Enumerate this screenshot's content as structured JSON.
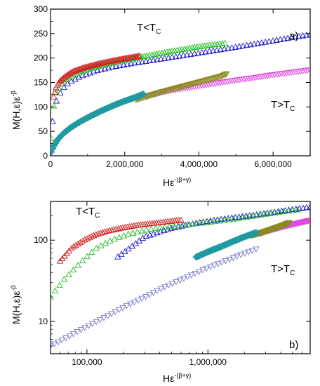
{
  "chart_data": [
    {
      "type": "scatter",
      "panel_label": "a)",
      "xlabel_main": "Hε",
      "xlabel_sup": "-(β+γ)",
      "ylabel_main": "M(H,ε)ε",
      "ylabel_sup": "-β",
      "xlim": [
        0,
        7000000
      ],
      "ylim": [
        0,
        300
      ],
      "xticks": [
        0,
        2000000,
        4000000,
        6000000
      ],
      "xtick_labels": [
        "0",
        "2,000,000",
        "4,000,000",
        "6,000,000"
      ],
      "yticks": [
        0,
        50,
        100,
        150,
        200,
        250,
        300
      ],
      "ytick_labels": [
        "0",
        "50",
        "100",
        "150",
        "200",
        "250",
        "300"
      ],
      "annotations": [
        {
          "main": "T<T",
          "sub": "C",
          "x": 2200000,
          "y": 268
        },
        {
          "main": "T>T",
          "sub": "C",
          "x": 5950000,
          "y": 130
        }
      ],
      "series": [
        {
          "group": "below",
          "color": "#1a1acc",
          "marker": "triangle-up",
          "x": [
            60000,
            150000,
            300000,
            500000,
            800000,
            1200000,
            1700000,
            2300000,
            3000000,
            4000000,
            5000000,
            6000000,
            7000000
          ],
          "y": [
            70,
            110,
            135,
            150,
            162,
            173,
            182,
            190,
            198,
            210,
            222,
            235,
            248
          ]
        },
        {
          "group": "below",
          "color": "#20c020",
          "marker": "triangle-up",
          "x": [
            20000,
            60000,
            150000,
            300000,
            500000,
            800000,
            1200000,
            1800000,
            2500000,
            3300000,
            4000000,
            4700000
          ],
          "y": [
            35,
            90,
            128,
            148,
            160,
            172,
            182,
            193,
            203,
            214,
            223,
            230
          ]
        },
        {
          "group": "below",
          "color": "#d02020",
          "marker": "triangle-up",
          "x": [
            80000,
            150000,
            250000,
            400000,
            600000,
            900000,
            1300000,
            1800000,
            2400000
          ],
          "y": [
            120,
            140,
            152,
            162,
            172,
            180,
            188,
            196,
            204
          ]
        },
        {
          "group": "above",
          "color": "#dd44dd",
          "marker": "triangle-down",
          "x": [
            2600000,
            3000000,
            3500000,
            4000000,
            4500000,
            5000000,
            5500000,
            6000000,
            6500000,
            7000000
          ],
          "y": [
            122,
            130,
            137,
            143,
            149,
            155,
            160,
            166,
            171,
            176
          ]
        },
        {
          "group": "above",
          "color": "#8a8a20",
          "marker": "triangle-down",
          "x": [
            2300000,
            2600000,
            3000000,
            3400000,
            3800000,
            4200000,
            4600000,
            4750000
          ],
          "y": [
            115,
            122,
            131,
            139,
            147,
            155,
            163,
            168
          ]
        },
        {
          "group": "above",
          "color": "#1f9aa0",
          "marker": "diamond",
          "x": [
            20000,
            50000,
            100000,
            200000,
            350000,
            550000,
            800000,
            1100000,
            1400000,
            1700000,
            2000000,
            2300000,
            2500000
          ],
          "y": [
            8,
            14,
            22,
            34,
            46,
            58,
            70,
            82,
            93,
            103,
            112,
            120,
            126
          ]
        }
      ]
    },
    {
      "type": "scatter",
      "scale": "log-log",
      "panel_label": "b)",
      "xlabel_main": "Hε",
      "xlabel_sup": "-(β+γ)",
      "ylabel_main": "M(H,ε)ε",
      "ylabel_sup": "-β",
      "xlim": [
        50000,
        7000000
      ],
      "ylim": [
        4,
        300
      ],
      "xticks": [
        100000,
        1000000
      ],
      "xtick_labels": [
        "100,000",
        "1,000,000"
      ],
      "yticks": [
        10,
        100
      ],
      "ytick_labels": [
        "10",
        "100"
      ],
      "annotations": [
        {
          "main": "T<T",
          "sub": "C",
          "x": 70000,
          "y": 210
        },
        {
          "main": "T>T",
          "sub": "C",
          "x": 2700000,
          "y": 45
        }
      ],
      "series": [
        {
          "group": "below",
          "color": "#1a1acc",
          "marker": "triangle-up",
          "x": [
            180000,
            300000,
            500000,
            800000,
            1200000,
            1800000,
            2500000,
            3500000,
            5000000,
            7000000
          ],
          "y": [
            62,
            110,
            140,
            162,
            178,
            192,
            205,
            220,
            238,
            255
          ]
        },
        {
          "group": "below",
          "color": "#20c020",
          "marker": "triangle-up",
          "x": [
            50000,
            65000,
            90000,
            120000,
            160000,
            220000,
            300000,
            400000,
            550000,
            750000,
            1000000,
            1500000,
            2500000,
            4000000,
            5500000
          ],
          "y": [
            20,
            33,
            54,
            80,
            100,
            118,
            132,
            142,
            150,
            158,
            165,
            178,
            200,
            222,
            236
          ]
        },
        {
          "group": "below",
          "color": "#d02020",
          "marker": "triangle-up",
          "x": [
            60000,
            75000,
            95000,
            120000,
            150000,
            200000,
            260000,
            340000,
            450000,
            600000
          ],
          "y": [
            55,
            80,
            100,
            118,
            130,
            142,
            152,
            160,
            168,
            176
          ]
        },
        {
          "group": "above",
          "color": "#7a7acc",
          "marker": "triangle-down",
          "x": [
            50000,
            70000,
            90000,
            120000,
            160000,
            220000,
            300000,
            400000,
            550000,
            750000,
            1000000,
            1400000,
            1900000,
            2500000
          ],
          "y": [
            5,
            6.5,
            8,
            10,
            12.5,
            16,
            20,
            25,
            31,
            38,
            46,
            56,
            67,
            78
          ]
        },
        {
          "group": "above",
          "color": "#dd44dd",
          "marker": "triangle-down",
          "x": [
            2600000,
            3200000,
            4000000,
            5000000,
            6000000,
            7000000
          ],
          "y": [
            120,
            132,
            145,
            157,
            167,
            176
          ]
        },
        {
          "group": "above",
          "color": "#8a8a20",
          "marker": "triangle-down",
          "x": [
            2300000,
            2800000,
            3400000,
            4000000,
            4700000
          ],
          "y": [
            115,
            125,
            138,
            150,
            165
          ]
        },
        {
          "group": "above",
          "color": "#1f9aa0",
          "marker": "diamond",
          "x": [
            800000,
            1000000,
            1300000,
            1600000,
            2000000,
            2500000
          ],
          "y": [
            62,
            72,
            84,
            96,
            110,
            124
          ]
        }
      ]
    }
  ]
}
